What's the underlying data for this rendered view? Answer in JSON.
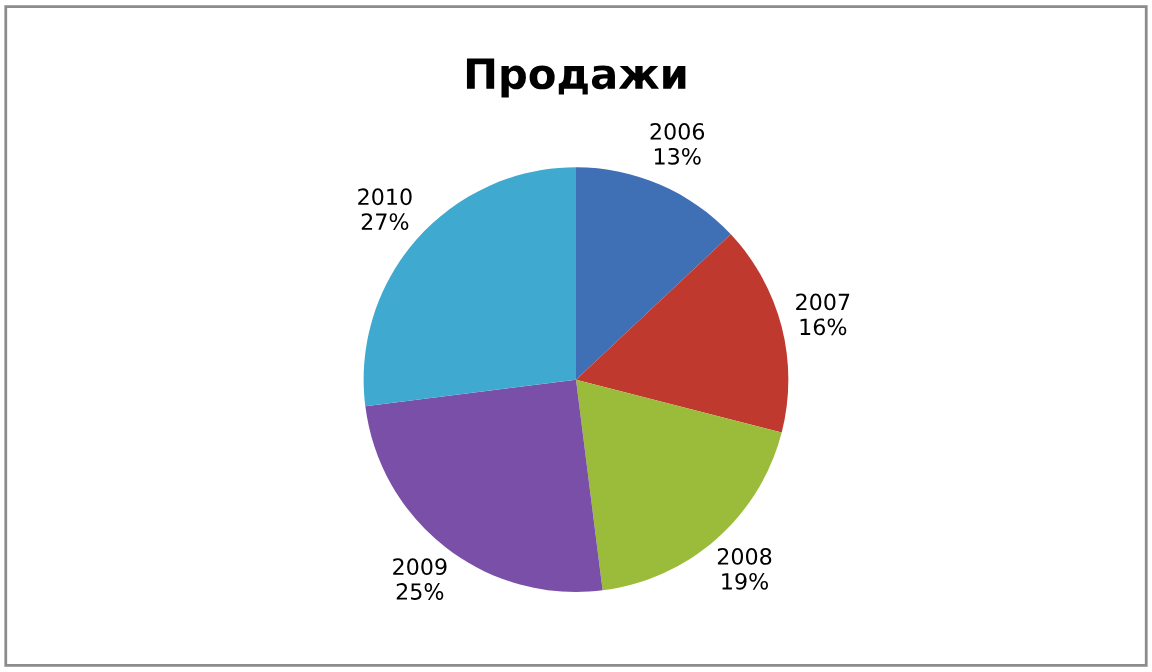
{
  "chart_data": {
    "type": "pie",
    "title": "Продажи",
    "categories": [
      "2006",
      "2007",
      "2008",
      "2009",
      "2010"
    ],
    "values": [
      13,
      16,
      19,
      25,
      27
    ],
    "value_labels": [
      "13%",
      "16%",
      "19%",
      "25%",
      "27%"
    ],
    "colors": [
      "#3f6fb5",
      "#c0392f",
      "#9bbb3a",
      "#7a4fa8",
      "#3fa9cf"
    ],
    "legend": false
  }
}
